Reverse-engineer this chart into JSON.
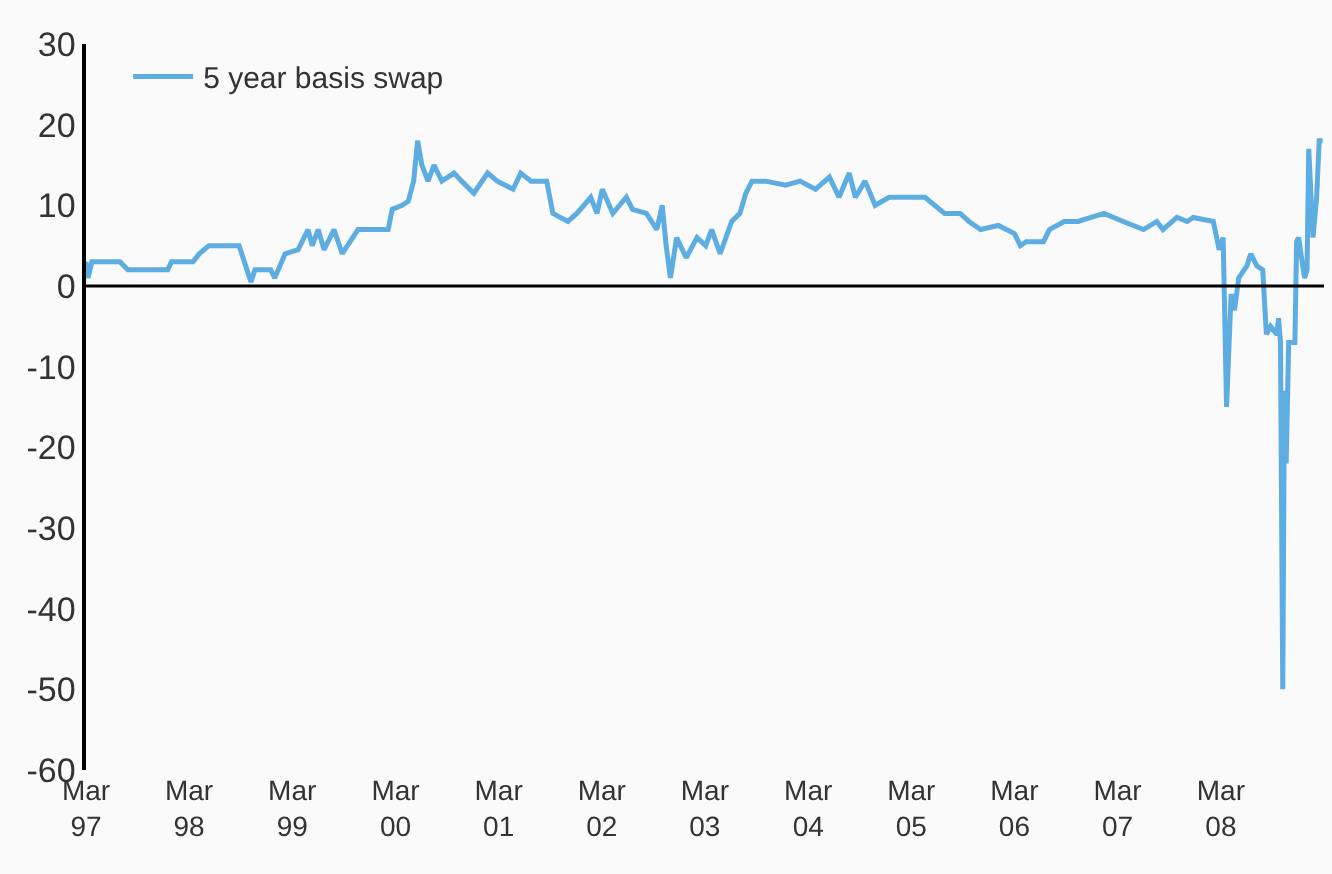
{
  "chart_data": {
    "type": "line",
    "legend": "top left",
    "marker": "none",
    "line_style": "solid",
    "xlim": [
      "1997-03-01",
      "2009-03-01"
    ],
    "ylim": [
      -60,
      30
    ],
    "yticks": [
      -60,
      -50,
      -40,
      -30,
      -20,
      -10,
      0,
      10,
      20,
      30
    ],
    "xticks": [
      {
        "value": "1997-03-01",
        "label": "Mar\n97"
      },
      {
        "value": "1998-03-01",
        "label": "Mar\n98"
      },
      {
        "value": "1999-03-01",
        "label": "Mar\n99"
      },
      {
        "value": "2000-03-01",
        "label": "Mar\n00"
      },
      {
        "value": "2001-03-01",
        "label": "Mar\n01"
      },
      {
        "value": "2002-03-01",
        "label": "Mar\n02"
      },
      {
        "value": "2003-03-01",
        "label": "Mar\n03"
      },
      {
        "value": "2004-03-01",
        "label": "Mar\n04"
      },
      {
        "value": "2005-03-01",
        "label": "Mar\n05"
      },
      {
        "value": "2006-03-01",
        "label": "Mar\n06"
      },
      {
        "value": "2007-03-01",
        "label": "Mar\n07"
      },
      {
        "value": "2008-03-01",
        "label": "Mar\n08"
      }
    ],
    "ref_lines": [
      {
        "axis": "y",
        "value": 0,
        "color": "#000000",
        "line_style": "solid"
      }
    ],
    "x": [
      "1997-03-01",
      "1997-03-08",
      "1997-03-22",
      "1997-06-29",
      "1997-07-27",
      "1997-12-15",
      "1997-12-29",
      "1998-03-15",
      "1998-04-06",
      "1998-05-10",
      "1998-08-04",
      "1998-08-25",
      "1998-09-22",
      "1998-10-06",
      "1998-10-20",
      "1998-12-15",
      "1998-12-29",
      "1999-02-04",
      "1999-03-22",
      "1999-04-26",
      "1999-05-11",
      "1999-06-01",
      "1999-06-22",
      "1999-07-27",
      "1999-08-25",
      "1999-10-20",
      "2000-02-04",
      "2000-02-18",
      "2000-03-24",
      "2000-04-15",
      "2000-05-04",
      "2000-05-18",
      "2000-06-02",
      "2000-06-24",
      "2000-07-15",
      "2000-08-12",
      "2000-09-24",
      "2000-10-21",
      "2000-12-03",
      "2001-01-21",
      "2001-02-24",
      "2001-04-21",
      "2001-05-18",
      "2001-06-24",
      "2001-08-18",
      "2001-09-09",
      "2001-11-01",
      "2001-12-03",
      "2002-01-21",
      "2002-02-12",
      "2002-03-03",
      "2002-04-09",
      "2002-05-27",
      "2002-06-18",
      "2002-08-06",
      "2002-09-12",
      "2002-10-01",
      "2002-10-15",
      "2002-10-30",
      "2002-11-21",
      "2002-12-25",
      "2003-02-01",
      "2003-03-04",
      "2003-03-25",
      "2003-04-24",
      "2003-06-04",
      "2003-07-03",
      "2003-07-24",
      "2003-08-15",
      "2003-10-03",
      "2003-12-12",
      "2004-02-01",
      "2004-03-27",
      "2004-05-15",
      "2004-06-18",
      "2004-07-24",
      "2004-08-15",
      "2004-09-18",
      "2004-10-24",
      "2004-12-12",
      "2005-02-08",
      "2005-04-18",
      "2005-06-27",
      "2005-08-21",
      "2005-09-21",
      "2005-11-01",
      "2006-01-03",
      "2006-03-01",
      "2006-03-22",
      "2006-04-12",
      "2006-06-12",
      "2006-07-03",
      "2006-08-24",
      "2006-10-12",
      "2007-01-12",
      "2007-03-21",
      "2007-06-01",
      "2007-07-18",
      "2007-08-09",
      "2007-09-27",
      "2007-11-03",
      "2007-11-24",
      "2008-02-03",
      "2008-02-24",
      "2008-03-09",
      "2008-03-21",
      "2008-04-06",
      "2008-04-18",
      "2008-05-03",
      "2008-06-01",
      "2008-06-15",
      "2008-07-06",
      "2008-07-27",
      "2008-08-09",
      "2008-08-24",
      "2008-09-15",
      "2008-09-21",
      "2008-09-28",
      "2008-10-06",
      "2008-10-12",
      "2008-10-18",
      "2008-10-27",
      "2008-11-18",
      "2008-11-24",
      "2008-12-01",
      "2008-12-22",
      "2008-12-31",
      "2009-01-06",
      "2009-01-21",
      "2009-02-03",
      "2009-02-12",
      "2009-02-24"
    ],
    "series": [
      {
        "name": "5 year basis swap",
        "color": "#5dade2",
        "values": [
          3,
          1,
          3,
          3,
          2,
          2,
          3,
          3,
          4,
          5,
          5,
          5,
          2,
          0.5,
          2,
          2,
          1,
          4,
          4.5,
          7,
          5,
          7,
          4.5,
          7,
          4,
          7,
          7,
          9.5,
          10,
          10.5,
          13,
          18,
          15,
          13,
          15,
          13,
          14,
          13,
          11.5,
          14,
          13,
          12,
          14,
          13,
          13,
          9,
          8,
          9,
          11,
          9,
          12,
          9,
          11,
          9.5,
          9,
          7,
          10,
          5,
          1,
          6,
          3.5,
          6,
          5,
          7,
          4,
          8,
          9,
          11.5,
          13,
          13,
          12.5,
          13,
          12,
          13.5,
          11,
          14,
          11,
          13,
          10,
          11,
          11,
          11,
          9,
          9,
          8,
          7,
          7.5,
          6.5,
          5,
          5.5,
          5.5,
          7,
          8,
          8,
          9,
          8,
          7,
          8,
          7,
          8.5,
          8,
          8.5,
          8,
          4.5,
          6,
          -15,
          -1,
          -3,
          1,
          2.5,
          4,
          2.5,
          2,
          -6,
          -5,
          -6,
          -4,
          -7,
          -50,
          -13,
          -22,
          -7,
          -7,
          5.5,
          6,
          1,
          2,
          17,
          6,
          11,
          18,
          18
        ]
      }
    ]
  }
}
